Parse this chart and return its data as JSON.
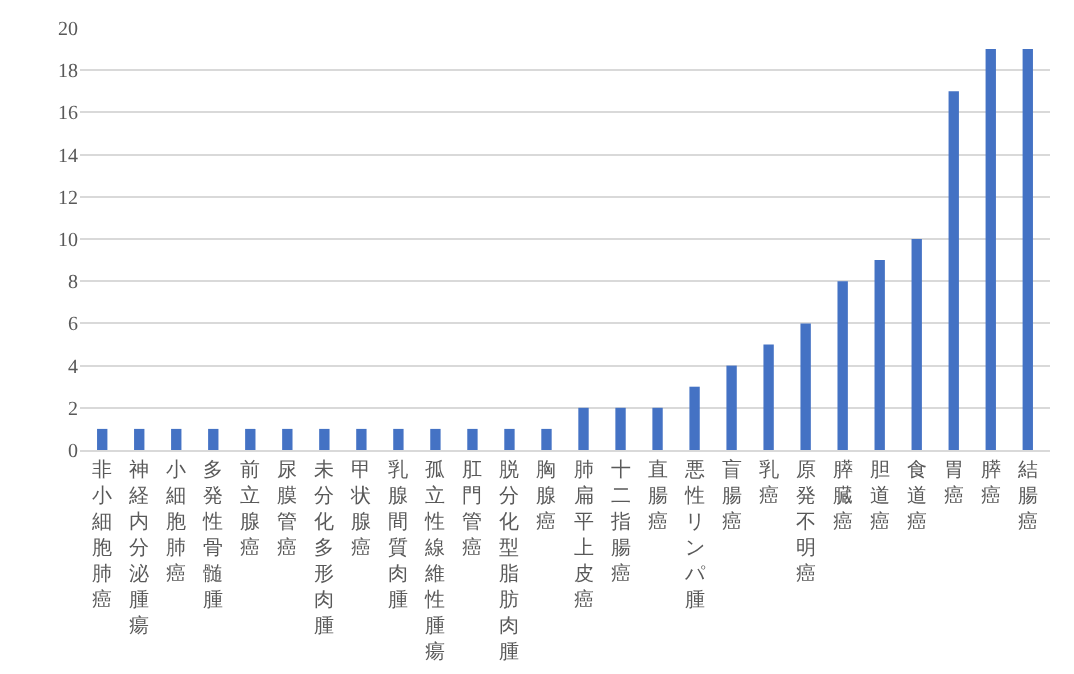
{
  "chart_data": {
    "type": "bar",
    "categories": [
      "非小細胞肺癌",
      "神経内分泌腫瘍",
      "小細胞肺癌",
      "多発性骨髄腫",
      "前立腺癌",
      "尿膜管癌",
      "未分化多形肉腫",
      "甲状腺癌",
      "乳腺間質肉腫",
      "孤立性線維性腫瘍",
      "肛門管癌",
      "脱分化型脂肪肉腫",
      "胸腺癌",
      "肺扁平上皮癌",
      "十二指腸癌",
      "直腸癌",
      "悪性リンパ腫",
      "盲腸癌",
      "乳癌",
      "原発不明癌",
      "膵臓癌",
      "胆道癌",
      "食道癌",
      "胃癌",
      "膵癌",
      "結腸癌"
    ],
    "values": [
      1,
      1,
      1,
      1,
      1,
      1,
      1,
      1,
      1,
      1,
      1,
      1,
      1,
      2,
      2,
      2,
      3,
      4,
      5,
      6,
      8,
      9,
      10,
      17,
      19,
      19
    ],
    "color": "#4472c4",
    "ylim": [
      0,
      20
    ],
    "yticks": [
      0,
      2,
      4,
      6,
      8,
      10,
      12,
      14,
      16,
      18,
      20
    ],
    "grid": "y"
  }
}
